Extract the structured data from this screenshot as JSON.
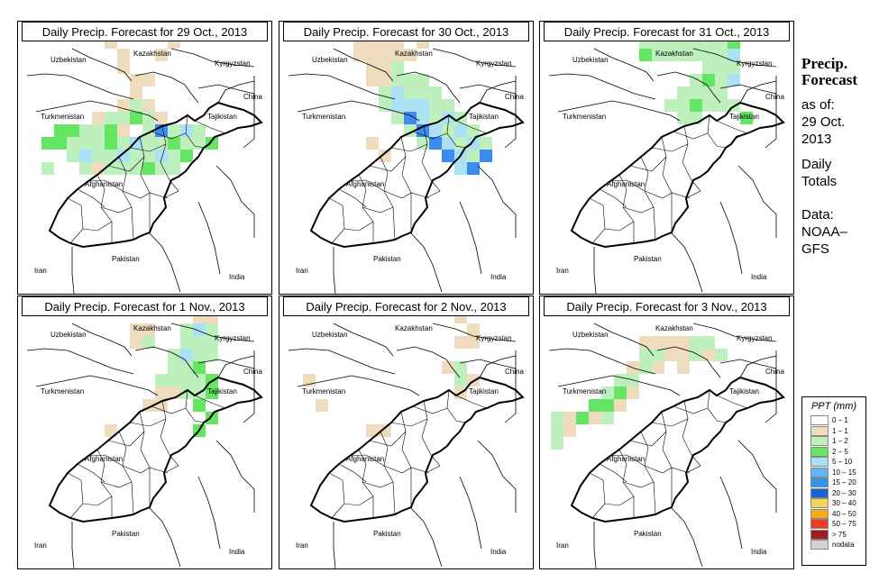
{
  "panels": [
    {
      "title": "Daily Precip. Forecast for  29 Oct., 2013",
      "cells": [
        [
          2,
          10,
          "green"
        ],
        [
          3,
          10,
          "green"
        ],
        [
          4,
          10,
          "lgreen"
        ],
        [
          5,
          10,
          "lgreen"
        ],
        [
          6,
          10,
          "green"
        ],
        [
          7,
          10,
          "tan"
        ],
        [
          2,
          11,
          "green"
        ],
        [
          3,
          11,
          "lgreen"
        ],
        [
          4,
          11,
          "lgreen"
        ],
        [
          5,
          11,
          "lgreen"
        ],
        [
          6,
          11,
          "green"
        ],
        [
          7,
          11,
          "lgreen"
        ],
        [
          8,
          11,
          "lblue"
        ],
        [
          9,
          11,
          "lgreen"
        ],
        [
          10,
          11,
          "lgreen"
        ],
        [
          11,
          11,
          "green"
        ],
        [
          3,
          12,
          "lgreen"
        ],
        [
          4,
          12,
          "lblue"
        ],
        [
          5,
          12,
          "lgreen"
        ],
        [
          6,
          12,
          "lgreen"
        ],
        [
          7,
          12,
          "lblue"
        ],
        [
          8,
          12,
          "lgreen"
        ],
        [
          9,
          12,
          "lgreen"
        ],
        [
          10,
          12,
          "lblue"
        ],
        [
          11,
          12,
          "lgreen"
        ],
        [
          12,
          12,
          "green"
        ],
        [
          4,
          13,
          "lgreen"
        ],
        [
          5,
          13,
          "tan"
        ],
        [
          6,
          13,
          "lgreen"
        ],
        [
          7,
          13,
          "lgreen"
        ],
        [
          8,
          13,
          "lgreen"
        ],
        [
          9,
          13,
          "green"
        ],
        [
          10,
          13,
          "lgreen"
        ],
        [
          11,
          13,
          "lgreen"
        ],
        [
          5,
          9,
          "tan"
        ],
        [
          6,
          9,
          "lgreen"
        ],
        [
          7,
          9,
          "lgreen"
        ],
        [
          8,
          9,
          "green"
        ],
        [
          9,
          9,
          "lgreen"
        ],
        [
          10,
          9,
          "tan"
        ],
        [
          7,
          8,
          "tan"
        ],
        [
          8,
          8,
          "lgreen"
        ],
        [
          9,
          8,
          "tan"
        ],
        [
          9,
          10,
          "lgreen"
        ],
        [
          10,
          10,
          "blue"
        ],
        [
          11,
          10,
          "lgreen"
        ],
        [
          12,
          10,
          "lblue"
        ],
        [
          13,
          10,
          "lgreen"
        ],
        [
          12,
          11,
          "lgreen"
        ],
        [
          13,
          11,
          "lgreen"
        ],
        [
          14,
          11,
          "green"
        ],
        [
          8,
          7,
          "tan"
        ],
        [
          9,
          6,
          "tan"
        ],
        [
          8,
          6,
          "tan"
        ],
        [
          7,
          5,
          "tan"
        ],
        [
          7,
          4,
          "tan"
        ],
        [
          6,
          3,
          "tan"
        ],
        [
          8,
          2,
          "tan"
        ],
        [
          10,
          4,
          "tan"
        ],
        [
          11,
          3,
          "tan"
        ],
        [
          1,
          11,
          "green"
        ],
        [
          1,
          13,
          "lgreen"
        ]
      ]
    },
    {
      "title": "Daily Precip. Forecast for  30 Oct., 2013",
      "cells": [
        [
          5,
          1,
          "tan"
        ],
        [
          6,
          1,
          "tan"
        ],
        [
          5,
          2,
          "tan"
        ],
        [
          6,
          2,
          "tan"
        ],
        [
          7,
          2,
          "tan"
        ],
        [
          5,
          3,
          "tan"
        ],
        [
          6,
          3,
          "tan"
        ],
        [
          7,
          3,
          "tan"
        ],
        [
          8,
          3,
          "tan"
        ],
        [
          5,
          4,
          "tan"
        ],
        [
          6,
          4,
          "tan"
        ],
        [
          7,
          4,
          "tan"
        ],
        [
          8,
          4,
          "tan"
        ],
        [
          9,
          4,
          "tan"
        ],
        [
          6,
          5,
          "tan"
        ],
        [
          7,
          5,
          "tan"
        ],
        [
          8,
          5,
          "lgreen"
        ],
        [
          6,
          6,
          "tan"
        ],
        [
          7,
          6,
          "tan"
        ],
        [
          8,
          6,
          "lgreen"
        ],
        [
          9,
          6,
          "lgreen"
        ],
        [
          10,
          6,
          "lgreen"
        ],
        [
          7,
          7,
          "lgreen"
        ],
        [
          8,
          7,
          "lblue"
        ],
        [
          9,
          7,
          "lgreen"
        ],
        [
          10,
          7,
          "lgreen"
        ],
        [
          11,
          7,
          "lgreen"
        ],
        [
          7,
          8,
          "lgreen"
        ],
        [
          8,
          8,
          "lblue"
        ],
        [
          9,
          8,
          "lblue"
        ],
        [
          10,
          8,
          "lblue"
        ],
        [
          11,
          8,
          "lgreen"
        ],
        [
          12,
          8,
          "lgreen"
        ],
        [
          8,
          9,
          "lgreen"
        ],
        [
          9,
          9,
          "blue"
        ],
        [
          10,
          9,
          "lblue"
        ],
        [
          11,
          9,
          "lgreen"
        ],
        [
          12,
          9,
          "lblue"
        ],
        [
          13,
          9,
          "lgreen"
        ],
        [
          9,
          10,
          "lgreen"
        ],
        [
          10,
          10,
          "blue"
        ],
        [
          11,
          10,
          "lblue"
        ],
        [
          12,
          10,
          "lgreen"
        ],
        [
          13,
          10,
          "lblue"
        ],
        [
          14,
          10,
          "lgreen"
        ],
        [
          10,
          11,
          "lgreen"
        ],
        [
          11,
          11,
          "blue"
        ],
        [
          12,
          11,
          "lblue"
        ],
        [
          13,
          11,
          "lgreen"
        ],
        [
          14,
          11,
          "lblue"
        ],
        [
          15,
          11,
          "lgreen"
        ],
        [
          12,
          12,
          "blue"
        ],
        [
          13,
          12,
          "lblue"
        ],
        [
          14,
          12,
          "lgreen"
        ],
        [
          15,
          12,
          "blue"
        ],
        [
          13,
          13,
          "lblue"
        ],
        [
          14,
          13,
          "blue"
        ],
        [
          11,
          1,
          "lgreen"
        ],
        [
          12,
          2,
          "lgreen"
        ],
        [
          10,
          3,
          "tan"
        ],
        [
          6,
          11,
          "tan"
        ],
        [
          7,
          12,
          "tan"
        ]
      ]
    },
    {
      "title": "Daily Precip. Forecast for  31 Oct., 2013",
      "cells": [
        [
          9,
          2,
          "lgreen"
        ],
        [
          10,
          2,
          "lgreen"
        ],
        [
          11,
          2,
          "lblue"
        ],
        [
          12,
          2,
          "lgreen"
        ],
        [
          13,
          2,
          "green"
        ],
        [
          14,
          2,
          "tan"
        ],
        [
          15,
          2,
          "tan"
        ],
        [
          7,
          3,
          "lgreen"
        ],
        [
          8,
          3,
          "lgreen"
        ],
        [
          9,
          3,
          "lgreen"
        ],
        [
          10,
          3,
          "lgreen"
        ],
        [
          11,
          3,
          "lgreen"
        ],
        [
          12,
          3,
          "lgreen"
        ],
        [
          13,
          3,
          "lgreen"
        ],
        [
          14,
          3,
          "green"
        ],
        [
          7,
          4,
          "green"
        ],
        [
          8,
          4,
          "lgreen"
        ],
        [
          9,
          4,
          "lgreen"
        ],
        [
          10,
          4,
          "lgreen"
        ],
        [
          11,
          4,
          "lgreen"
        ],
        [
          12,
          4,
          "lgreen"
        ],
        [
          13,
          4,
          "lgreen"
        ],
        [
          14,
          4,
          "lblue"
        ],
        [
          12,
          5,
          "lgreen"
        ],
        [
          13,
          5,
          "lgreen"
        ],
        [
          14,
          5,
          "lgreen"
        ],
        [
          11,
          6,
          "lgreen"
        ],
        [
          12,
          6,
          "green"
        ],
        [
          13,
          6,
          "lgreen"
        ],
        [
          14,
          6,
          "lblue"
        ],
        [
          10,
          7,
          "lgreen"
        ],
        [
          11,
          7,
          "lgreen"
        ],
        [
          12,
          7,
          "lgreen"
        ],
        [
          13,
          7,
          "lgreen"
        ],
        [
          9,
          8,
          "lgreen"
        ],
        [
          10,
          8,
          "lgreen"
        ],
        [
          11,
          8,
          "green"
        ],
        [
          12,
          8,
          "lgreen"
        ],
        [
          13,
          8,
          "lgreen"
        ],
        [
          10,
          9,
          "lgreen"
        ],
        [
          11,
          9,
          "lgreen"
        ],
        [
          14,
          8,
          "lgreen"
        ],
        [
          15,
          9,
          "green"
        ],
        [
          8,
          1,
          "tan"
        ],
        [
          13,
          1,
          "lblue"
        ],
        [
          14,
          1,
          "tan"
        ]
      ]
    },
    {
      "title": "Daily Precip. Forecast for  1 Nov., 2013",
      "cells": [
        [
          12,
          2,
          "tan"
        ],
        [
          13,
          2,
          "tan"
        ],
        [
          14,
          2,
          "tan"
        ],
        [
          11,
          1,
          "tan"
        ],
        [
          12,
          1,
          "tan"
        ],
        [
          13,
          3,
          "tan"
        ],
        [
          14,
          3,
          "tan"
        ],
        [
          12,
          4,
          "lgreen"
        ],
        [
          13,
          4,
          "lblue"
        ],
        [
          14,
          4,
          "lgreen"
        ],
        [
          12,
          5,
          "lgreen"
        ],
        [
          13,
          5,
          "lgreen"
        ],
        [
          14,
          5,
          "lgreen"
        ],
        [
          11,
          6,
          "lgreen"
        ],
        [
          12,
          6,
          "lblue"
        ],
        [
          13,
          6,
          "lgreen"
        ],
        [
          14,
          6,
          "lgreen"
        ],
        [
          11,
          7,
          "lgreen"
        ],
        [
          12,
          7,
          "lgreen"
        ],
        [
          13,
          7,
          "green"
        ],
        [
          11,
          8,
          "lgreen"
        ],
        [
          12,
          8,
          "lgreen"
        ],
        [
          13,
          8,
          "lgreen"
        ],
        [
          14,
          8,
          "green"
        ],
        [
          10,
          8,
          "lgreen"
        ],
        [
          11,
          9,
          "tan"
        ],
        [
          12,
          9,
          "lgreen"
        ],
        [
          13,
          9,
          "lgreen"
        ],
        [
          10,
          9,
          "tan"
        ],
        [
          14,
          9,
          "green"
        ],
        [
          8,
          4,
          "tan"
        ],
        [
          9,
          4,
          "tan"
        ],
        [
          9,
          5,
          "lgreen"
        ],
        [
          8,
          5,
          "tan"
        ],
        [
          13,
          10,
          "green"
        ],
        [
          10,
          10,
          "tan"
        ],
        [
          9,
          10,
          "tan"
        ],
        [
          14,
          11,
          "green"
        ],
        [
          13,
          12,
          "green"
        ],
        [
          6,
          12,
          "tan"
        ]
      ]
    },
    {
      "title": "Daily Precip. Forecast for  2 Nov., 2013",
      "cells": [
        [
          13,
          1,
          "tan"
        ],
        [
          14,
          1,
          "tan"
        ],
        [
          13,
          3,
          "tan"
        ],
        [
          14,
          4,
          "tan"
        ],
        [
          13,
          5,
          "tan"
        ],
        [
          14,
          5,
          "tan"
        ],
        [
          12,
          7,
          "tan"
        ],
        [
          13,
          7,
          "lgreen"
        ],
        [
          13,
          8,
          "lgreen"
        ],
        [
          14,
          8,
          "tan"
        ],
        [
          13,
          9,
          "tan"
        ],
        [
          6,
          12,
          "tan"
        ],
        [
          7,
          12,
          "tan"
        ],
        [
          1,
          8,
          "tan"
        ],
        [
          2,
          10,
          "tan"
        ]
      ]
    },
    {
      "title": "Daily Precip. Forecast for  3 Nov., 2013",
      "cells": [
        [
          7,
          5,
          "tan"
        ],
        [
          8,
          5,
          "tan"
        ],
        [
          9,
          5,
          "tan"
        ],
        [
          10,
          5,
          "tan"
        ],
        [
          11,
          5,
          "lgreen"
        ],
        [
          12,
          5,
          "lgreen"
        ],
        [
          7,
          6,
          "lgreen"
        ],
        [
          8,
          6,
          "lgreen"
        ],
        [
          9,
          6,
          "tan"
        ],
        [
          10,
          6,
          "tan"
        ],
        [
          11,
          6,
          "lgreen"
        ],
        [
          12,
          6,
          "tan"
        ],
        [
          13,
          6,
          "lgreen"
        ],
        [
          6,
          7,
          "tan"
        ],
        [
          7,
          7,
          "lgreen"
        ],
        [
          8,
          7,
          "tan"
        ],
        [
          10,
          7,
          "tan"
        ],
        [
          5,
          8,
          "lgreen"
        ],
        [
          6,
          8,
          "lgreen"
        ],
        [
          4,
          9,
          "lgreen"
        ],
        [
          5,
          9,
          "green"
        ],
        [
          6,
          9,
          "tan"
        ],
        [
          3,
          10,
          "green"
        ],
        [
          4,
          10,
          "green"
        ],
        [
          5,
          10,
          "tan"
        ],
        [
          1,
          11,
          "tan"
        ],
        [
          2,
          11,
          "green"
        ],
        [
          3,
          11,
          "tan"
        ],
        [
          4,
          11,
          "lgreen"
        ],
        [
          0,
          11,
          "lgreen"
        ],
        [
          0,
          12,
          "lgreen"
        ],
        [
          1,
          12,
          "tan"
        ],
        [
          0,
          13,
          "lgreen"
        ],
        [
          11,
          1,
          "lgreen"
        ],
        [
          12,
          1,
          "lgreen"
        ]
      ]
    }
  ],
  "map_labels": {
    "uzbekistan": "Uzbekistan",
    "kazakhstan": "Kazakhstan",
    "kyrgyzstan": "Kyrgyzstan",
    "china": "China",
    "turkmenistan": "Turkmenistan",
    "tajikistan": "Tajikistan",
    "afghanistan": "Afghanistan",
    "pakistan": "Pakistan",
    "iran": "Iran",
    "india": "India"
  },
  "side": {
    "title_line1": "Precip.",
    "title_line2": "Forecast",
    "asof_label": "as of:",
    "asof_date": "29 Oct.",
    "asof_year": "2013",
    "totals_line1": "Daily",
    "totals_line2": "Totals",
    "data_label": "Data:",
    "data_source1": "NOAA–",
    "data_source2": "GFS"
  },
  "legend": {
    "title": "PPT (mm)",
    "entries": [
      {
        "label": "0 – 1",
        "color": "#ffffff"
      },
      {
        "label": "1 – 1",
        "color": "#efdcbe"
      },
      {
        "label": "1 – 2",
        "color": "#bef0be"
      },
      {
        "label": "2 – 5",
        "color": "#64e664"
      },
      {
        "label": "5 – 10",
        "color": "#aae1f5"
      },
      {
        "label": "10 – 15",
        "color": "#64b4f5"
      },
      {
        "label": "15 – 20",
        "color": "#3296e6"
      },
      {
        "label": "20 – 30",
        "color": "#1464d2"
      },
      {
        "label": "30 – 40",
        "color": "#f5d25a"
      },
      {
        "label": "40 – 50",
        "color": "#f5aa1e"
      },
      {
        "label": "50 – 75",
        "color": "#f03c1e"
      },
      {
        "label": "> 75",
        "color": "#a01e1e"
      },
      {
        "label": "nodata",
        "color": "#d2d2d2"
      }
    ]
  },
  "palette": {
    "tan": "#efdcbe",
    "lgreen": "#bef0be",
    "green": "#64e664",
    "lblue": "#aae1f5",
    "blue": "#3c8cf0"
  }
}
